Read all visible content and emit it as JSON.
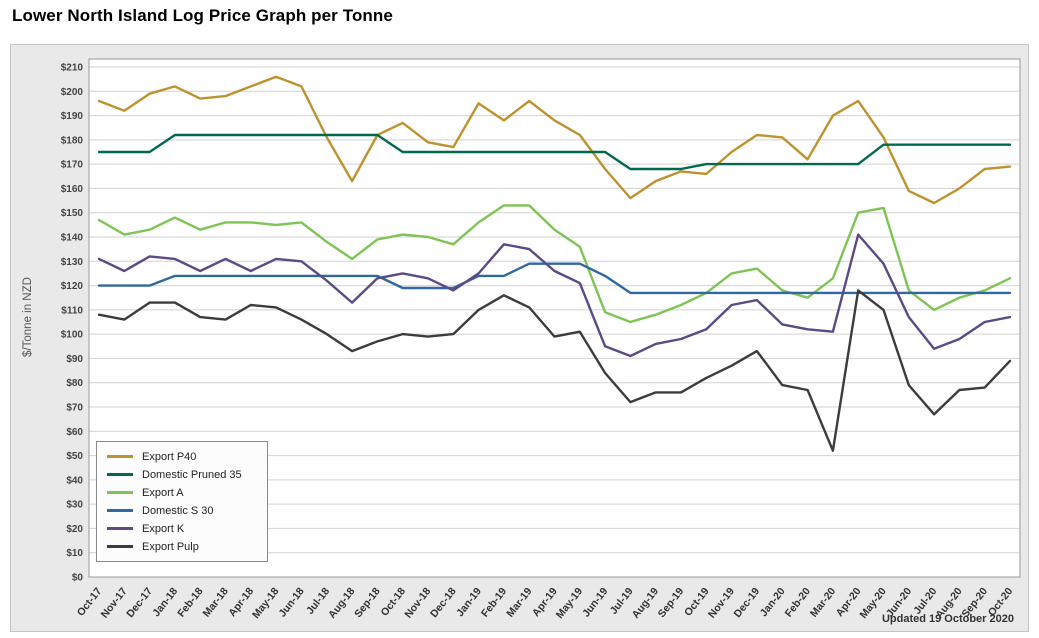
{
  "title": "Lower North Island Log Price Graph per Tonne",
  "updated_note": "Updated 19 October 2020",
  "chart_data": {
    "type": "line",
    "title": "Lower North Island Log Price Graph per Tonne",
    "xlabel": "",
    "ylabel": "$/Tonne in NZD",
    "ylim": [
      0,
      210
    ],
    "ytick_step": 10,
    "ytick_prefix": "$",
    "grid": true,
    "legend_position": "inside-bottom-left",
    "categories": [
      "Oct-17",
      "Nov-17",
      "Dec-17",
      "Jan-18",
      "Feb-18",
      "Mar-18",
      "Apr-18",
      "May-18",
      "Jun-18",
      "Jul-18",
      "Aug-18",
      "Sep-18",
      "Oct-18",
      "Nov-18",
      "Dec-18",
      "Jan-19",
      "Feb-19",
      "Mar-19",
      "Apr-19",
      "May-19",
      "Jun-19",
      "Jul-19",
      "Aug-19",
      "Sep-19",
      "Oct-19",
      "Nov-19",
      "Dec-19",
      "Jan-20",
      "Feb-20",
      "Mar-20",
      "Apr-20",
      "May-20",
      "Jun-20",
      "Jul-20",
      "Aug-20",
      "Sep-20",
      "Oct-20"
    ],
    "series": [
      {
        "name": "Export P40",
        "color": "#BE922E",
        "values": [
          196,
          192,
          199,
          202,
          197,
          198,
          202,
          206,
          202,
          181,
          163,
          182,
          187,
          179,
          177,
          195,
          188,
          196,
          188,
          182,
          168,
          156,
          163,
          167,
          166,
          175,
          182,
          181,
          172,
          190,
          196,
          181,
          159,
          154,
          160,
          168,
          169
        ]
      },
      {
        "name": "Domestic Pruned 35",
        "color": "#00694F",
        "values": [
          175,
          175,
          175,
          182,
          182,
          182,
          182,
          182,
          182,
          182,
          182,
          182,
          175,
          175,
          175,
          175,
          175,
          175,
          175,
          175,
          175,
          168,
          168,
          168,
          170,
          170,
          170,
          170,
          170,
          170,
          170,
          178,
          178,
          178,
          178,
          178,
          178
        ]
      },
      {
        "name": "Export A",
        "color": "#7EC455",
        "values": [
          147,
          141,
          143,
          148,
          143,
          146,
          146,
          145,
          146,
          138,
          131,
          139,
          141,
          140,
          137,
          146,
          153,
          153,
          143,
          136,
          109,
          105,
          108,
          112,
          117,
          125,
          127,
          118,
          115,
          123,
          150,
          152,
          118,
          110,
          115,
          118,
          123
        ]
      },
      {
        "name": "Domestic S 30",
        "color": "#30689F",
        "values": [
          120,
          120,
          120,
          124,
          124,
          124,
          124,
          124,
          124,
          124,
          124,
          124,
          119,
          119,
          119,
          124,
          124,
          129,
          129,
          129,
          124,
          117,
          117,
          117,
          117,
          117,
          117,
          117,
          117,
          117,
          117,
          117,
          117,
          117,
          117,
          117,
          117
        ]
      },
      {
        "name": "Export K",
        "color": "#5B4A85",
        "values": [
          131,
          126,
          132,
          131,
          126,
          131,
          126,
          131,
          130,
          122,
          113,
          123,
          125,
          123,
          118,
          125,
          137,
          135,
          126,
          121,
          95,
          91,
          96,
          98,
          102,
          112,
          114,
          104,
          102,
          101,
          141,
          129,
          107,
          94,
          98,
          105,
          107
        ]
      },
      {
        "name": "Export Pulp",
        "color": "#3C3C3C",
        "values": [
          108,
          106,
          113,
          113,
          107,
          106,
          112,
          111,
          106,
          100,
          93,
          97,
          100,
          99,
          100,
          110,
          116,
          111,
          99,
          101,
          84,
          72,
          76,
          76,
          82,
          87,
          93,
          79,
          77,
          52,
          118,
          110,
          79,
          67,
          77,
          78,
          89
        ]
      }
    ]
  }
}
